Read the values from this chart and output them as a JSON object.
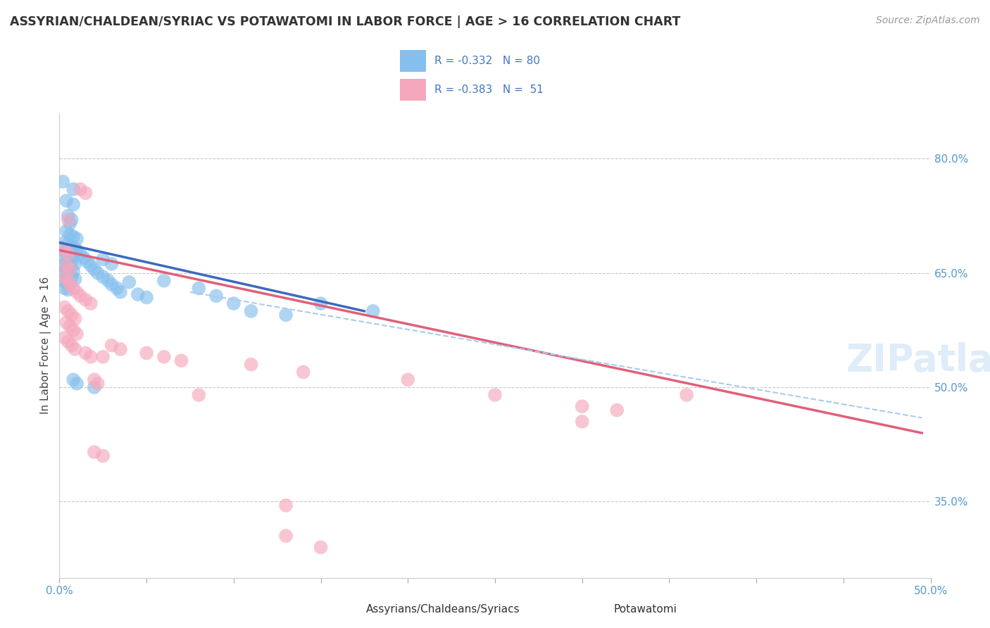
{
  "title": "ASSYRIAN/CHALDEAN/SYRIAC VS POTAWATOMI IN LABOR FORCE | AGE > 16 CORRELATION CHART",
  "source_text": "Source: ZipAtlas.com",
  "ylabel": "In Labor Force | Age > 16",
  "xlim": [
    0.0,
    0.5
  ],
  "ylim": [
    0.25,
    0.86
  ],
  "y_tick_positions_right": [
    0.8,
    0.65,
    0.5,
    0.35
  ],
  "y_tick_labels_right": [
    "80.0%",
    "65.0%",
    "50.0%",
    "35.0%"
  ],
  "grid_color": "#c8c8c8",
  "background_color": "#ffffff",
  "blue_color": "#85bfed",
  "blue_line_color": "#3a6abf",
  "pink_color": "#f5a8bc",
  "pink_line_color": "#e0607a",
  "dashed_line_color": "#a8ccee",
  "watermark": "ZIPatlas",
  "blue_scatter": [
    [
      0.002,
      0.77
    ],
    [
      0.008,
      0.76
    ],
    [
      0.004,
      0.745
    ],
    [
      0.008,
      0.74
    ],
    [
      0.005,
      0.725
    ],
    [
      0.007,
      0.72
    ],
    [
      0.006,
      0.715
    ],
    [
      0.004,
      0.705
    ],
    [
      0.006,
      0.7
    ],
    [
      0.008,
      0.698
    ],
    [
      0.01,
      0.695
    ],
    [
      0.003,
      0.69
    ],
    [
      0.005,
      0.688
    ],
    [
      0.007,
      0.685
    ],
    [
      0.009,
      0.682
    ],
    [
      0.002,
      0.68
    ],
    [
      0.004,
      0.678
    ],
    [
      0.006,
      0.675
    ],
    [
      0.008,
      0.672
    ],
    [
      0.003,
      0.67
    ],
    [
      0.005,
      0.668
    ],
    [
      0.007,
      0.665
    ],
    [
      0.009,
      0.662
    ],
    [
      0.002,
      0.66
    ],
    [
      0.004,
      0.658
    ],
    [
      0.006,
      0.655
    ],
    [
      0.008,
      0.652
    ],
    [
      0.003,
      0.65
    ],
    [
      0.005,
      0.648
    ],
    [
      0.007,
      0.645
    ],
    [
      0.009,
      0.642
    ],
    [
      0.002,
      0.64
    ],
    [
      0.004,
      0.638
    ],
    [
      0.006,
      0.635
    ],
    [
      0.003,
      0.63
    ],
    [
      0.005,
      0.628
    ],
    [
      0.01,
      0.68
    ],
    [
      0.012,
      0.675
    ],
    [
      0.014,
      0.67
    ],
    [
      0.016,
      0.665
    ],
    [
      0.018,
      0.66
    ],
    [
      0.02,
      0.655
    ],
    [
      0.022,
      0.65
    ],
    [
      0.025,
      0.645
    ],
    [
      0.028,
      0.64
    ],
    [
      0.03,
      0.635
    ],
    [
      0.033,
      0.63
    ],
    [
      0.025,
      0.668
    ],
    [
      0.03,
      0.662
    ],
    [
      0.04,
      0.638
    ],
    [
      0.035,
      0.625
    ],
    [
      0.045,
      0.622
    ],
    [
      0.05,
      0.618
    ],
    [
      0.06,
      0.64
    ],
    [
      0.08,
      0.63
    ],
    [
      0.09,
      0.62
    ],
    [
      0.1,
      0.61
    ],
    [
      0.11,
      0.6
    ],
    [
      0.13,
      0.595
    ],
    [
      0.008,
      0.51
    ],
    [
      0.01,
      0.505
    ],
    [
      0.02,
      0.5
    ],
    [
      0.15,
      0.61
    ],
    [
      0.18,
      0.6
    ]
  ],
  "pink_scatter": [
    [
      0.012,
      0.76
    ],
    [
      0.015,
      0.755
    ],
    [
      0.005,
      0.72
    ],
    [
      0.003,
      0.68
    ],
    [
      0.005,
      0.675
    ],
    [
      0.004,
      0.66
    ],
    [
      0.006,
      0.655
    ],
    [
      0.003,
      0.645
    ],
    [
      0.005,
      0.64
    ],
    [
      0.006,
      0.635
    ],
    [
      0.008,
      0.63
    ],
    [
      0.01,
      0.625
    ],
    [
      0.012,
      0.62
    ],
    [
      0.015,
      0.615
    ],
    [
      0.018,
      0.61
    ],
    [
      0.003,
      0.605
    ],
    [
      0.005,
      0.6
    ],
    [
      0.007,
      0.595
    ],
    [
      0.009,
      0.59
    ],
    [
      0.004,
      0.585
    ],
    [
      0.006,
      0.58
    ],
    [
      0.008,
      0.575
    ],
    [
      0.01,
      0.57
    ],
    [
      0.003,
      0.565
    ],
    [
      0.005,
      0.56
    ],
    [
      0.007,
      0.555
    ],
    [
      0.009,
      0.55
    ],
    [
      0.015,
      0.545
    ],
    [
      0.018,
      0.54
    ],
    [
      0.02,
      0.51
    ],
    [
      0.022,
      0.505
    ],
    [
      0.025,
      0.54
    ],
    [
      0.03,
      0.555
    ],
    [
      0.035,
      0.55
    ],
    [
      0.05,
      0.545
    ],
    [
      0.06,
      0.54
    ],
    [
      0.07,
      0.535
    ],
    [
      0.08,
      0.49
    ],
    [
      0.11,
      0.53
    ],
    [
      0.14,
      0.52
    ],
    [
      0.2,
      0.51
    ],
    [
      0.25,
      0.49
    ],
    [
      0.3,
      0.475
    ],
    [
      0.32,
      0.47
    ],
    [
      0.36,
      0.49
    ],
    [
      0.3,
      0.455
    ],
    [
      0.02,
      0.415
    ],
    [
      0.025,
      0.41
    ],
    [
      0.13,
      0.345
    ],
    [
      0.13,
      0.305
    ],
    [
      0.15,
      0.29
    ]
  ],
  "blue_line_x": [
    0.0,
    0.175
  ],
  "blue_line_y": [
    0.69,
    0.6
  ],
  "pink_line_x": [
    0.0,
    0.495
  ],
  "pink_line_y": [
    0.68,
    0.44
  ],
  "dashed_line_x": [
    0.075,
    0.495
  ],
  "dashed_line_y": [
    0.625,
    0.46
  ]
}
